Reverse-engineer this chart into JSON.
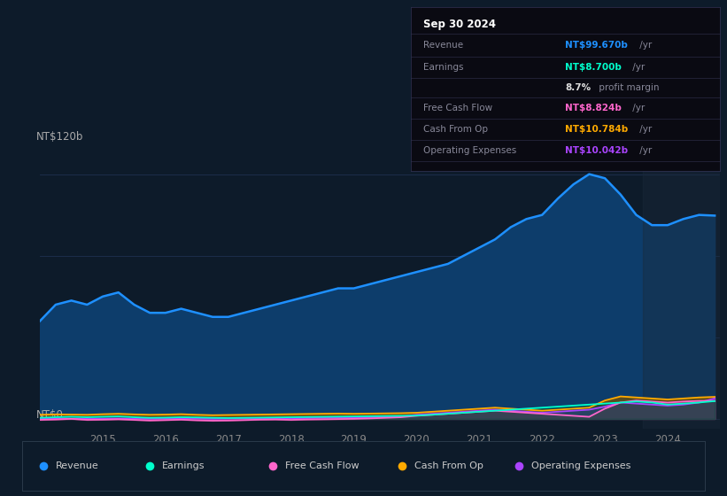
{
  "bg_color": "#0d1b2a",
  "revenue_color": "#1e90ff",
  "revenue_fill": "#0d3d6b",
  "earnings_color": "#00ffcc",
  "earnings_fill": "#004d40",
  "free_cashflow_color": "#ff66cc",
  "free_cashflow_fill": "#993366",
  "cash_from_op_color": "#ffaa00",
  "cash_from_op_fill": "#7a5500",
  "op_expenses_color": "#aa44ff",
  "op_expenses_fill": "#6633aa",
  "ylabel_top": "NT$120b",
  "ylabel_bottom": "NT$0",
  "grid_color": "#1e3050",
  "xmin": 2014.0,
  "xmax": 2024.83,
  "ymin": -5,
  "ymax": 130,
  "xtick_years": [
    2015,
    2016,
    2017,
    2018,
    2019,
    2020,
    2021,
    2022,
    2023,
    2024
  ],
  "years": [
    2014.0,
    2014.25,
    2014.5,
    2014.75,
    2015.0,
    2015.25,
    2015.5,
    2015.75,
    2016.0,
    2016.25,
    2016.5,
    2016.75,
    2017.0,
    2017.25,
    2017.5,
    2017.75,
    2018.0,
    2018.25,
    2018.5,
    2018.75,
    2019.0,
    2019.25,
    2019.5,
    2019.75,
    2020.0,
    2020.25,
    2020.5,
    2020.75,
    2021.0,
    2021.25,
    2021.5,
    2021.75,
    2022.0,
    2022.25,
    2022.5,
    2022.75,
    2023.0,
    2023.25,
    2023.5,
    2023.75,
    2024.0,
    2024.25,
    2024.5,
    2024.75
  ],
  "revenue": [
    48,
    56,
    58,
    56,
    60,
    62,
    56,
    52,
    52,
    54,
    52,
    50,
    50,
    52,
    54,
    56,
    58,
    60,
    62,
    64,
    64,
    66,
    68,
    70,
    72,
    74,
    76,
    80,
    84,
    88,
    94,
    98,
    100,
    108,
    115,
    120,
    118,
    110,
    100,
    95,
    95,
    98,
    100,
    99.67
  ],
  "earnings": [
    0.5,
    0.8,
    1.0,
    0.8,
    1.0,
    1.2,
    0.8,
    0.5,
    0.6,
    0.8,
    0.7,
    0.5,
    0.4,
    0.5,
    0.6,
    0.7,
    0.8,
    0.9,
    1.0,
    1.1,
    1.2,
    1.3,
    1.4,
    1.5,
    1.6,
    2.0,
    2.5,
    3.0,
    3.5,
    4.0,
    4.5,
    5.0,
    5.5,
    6.0,
    6.5,
    7.0,
    7.5,
    8.0,
    8.5,
    8.0,
    7.0,
    7.5,
    8.0,
    8.7
  ],
  "free_cashflow": [
    -0.5,
    -0.3,
    0.0,
    -0.5,
    -0.4,
    -0.2,
    -0.5,
    -0.8,
    -0.6,
    -0.4,
    -0.7,
    -0.9,
    -0.8,
    -0.6,
    -0.4,
    -0.3,
    -0.5,
    -0.3,
    -0.2,
    -0.1,
    0.0,
    0.2,
    0.5,
    0.8,
    1.5,
    2.0,
    2.5,
    3.0,
    3.5,
    4.0,
    3.5,
    3.0,
    2.5,
    2.0,
    1.5,
    1.0,
    5.0,
    8.0,
    9.0,
    8.5,
    8.0,
    8.5,
    8.8,
    8.824
  ],
  "cash_from_op": [
    2.0,
    2.2,
    2.1,
    2.0,
    2.3,
    2.5,
    2.2,
    2.0,
    2.1,
    2.3,
    2.0,
    1.8,
    1.9,
    2.0,
    2.1,
    2.2,
    2.3,
    2.4,
    2.5,
    2.6,
    2.5,
    2.6,
    2.7,
    2.8,
    3.0,
    3.5,
    4.0,
    4.5,
    5.0,
    5.5,
    5.0,
    4.5,
    4.0,
    4.5,
    5.0,
    5.5,
    9.0,
    11.0,
    10.5,
    10.0,
    9.5,
    10.0,
    10.5,
    10.784
  ],
  "op_expenses": [
    0.0,
    0.1,
    0.1,
    0.0,
    0.1,
    0.2,
    0.1,
    0.0,
    0.1,
    0.2,
    0.1,
    0.0,
    0.1,
    0.2,
    0.2,
    0.2,
    0.3,
    0.4,
    0.5,
    0.6,
    0.7,
    0.8,
    1.0,
    1.2,
    2.0,
    2.5,
    3.0,
    3.5,
    4.0,
    4.5,
    4.0,
    3.5,
    3.0,
    3.5,
    4.0,
    4.5,
    6.0,
    8.0,
    7.5,
    7.0,
    6.5,
    7.0,
    8.0,
    10.042
  ],
  "box_date": "Sep 30 2024",
  "box_rows": [
    {
      "label": "Revenue",
      "value": "NT$99.670b",
      "suffix": " /yr",
      "value_color": "#1e90ff"
    },
    {
      "label": "Earnings",
      "value": "NT$8.700b",
      "suffix": " /yr",
      "value_color": "#00ffcc"
    },
    {
      "label": "",
      "value": "8.7%",
      "suffix": " profit margin",
      "value_color": "#dddddd"
    },
    {
      "label": "Free Cash Flow",
      "value": "NT$8.824b",
      "suffix": " /yr",
      "value_color": "#ff66cc"
    },
    {
      "label": "Cash From Op",
      "value": "NT$10.784b",
      "suffix": " /yr",
      "value_color": "#ffaa00"
    },
    {
      "label": "Operating Expenses",
      "value": "NT$10.042b",
      "suffix": " /yr",
      "value_color": "#aa44ff"
    }
  ],
  "legend_items": [
    {
      "label": "Revenue",
      "color": "#1e90ff"
    },
    {
      "label": "Earnings",
      "color": "#00ffcc"
    },
    {
      "label": "Free Cash Flow",
      "color": "#ff66cc"
    },
    {
      "label": "Cash From Op",
      "color": "#ffaa00"
    },
    {
      "label": "Operating Expenses",
      "color": "#aa44ff"
    }
  ]
}
